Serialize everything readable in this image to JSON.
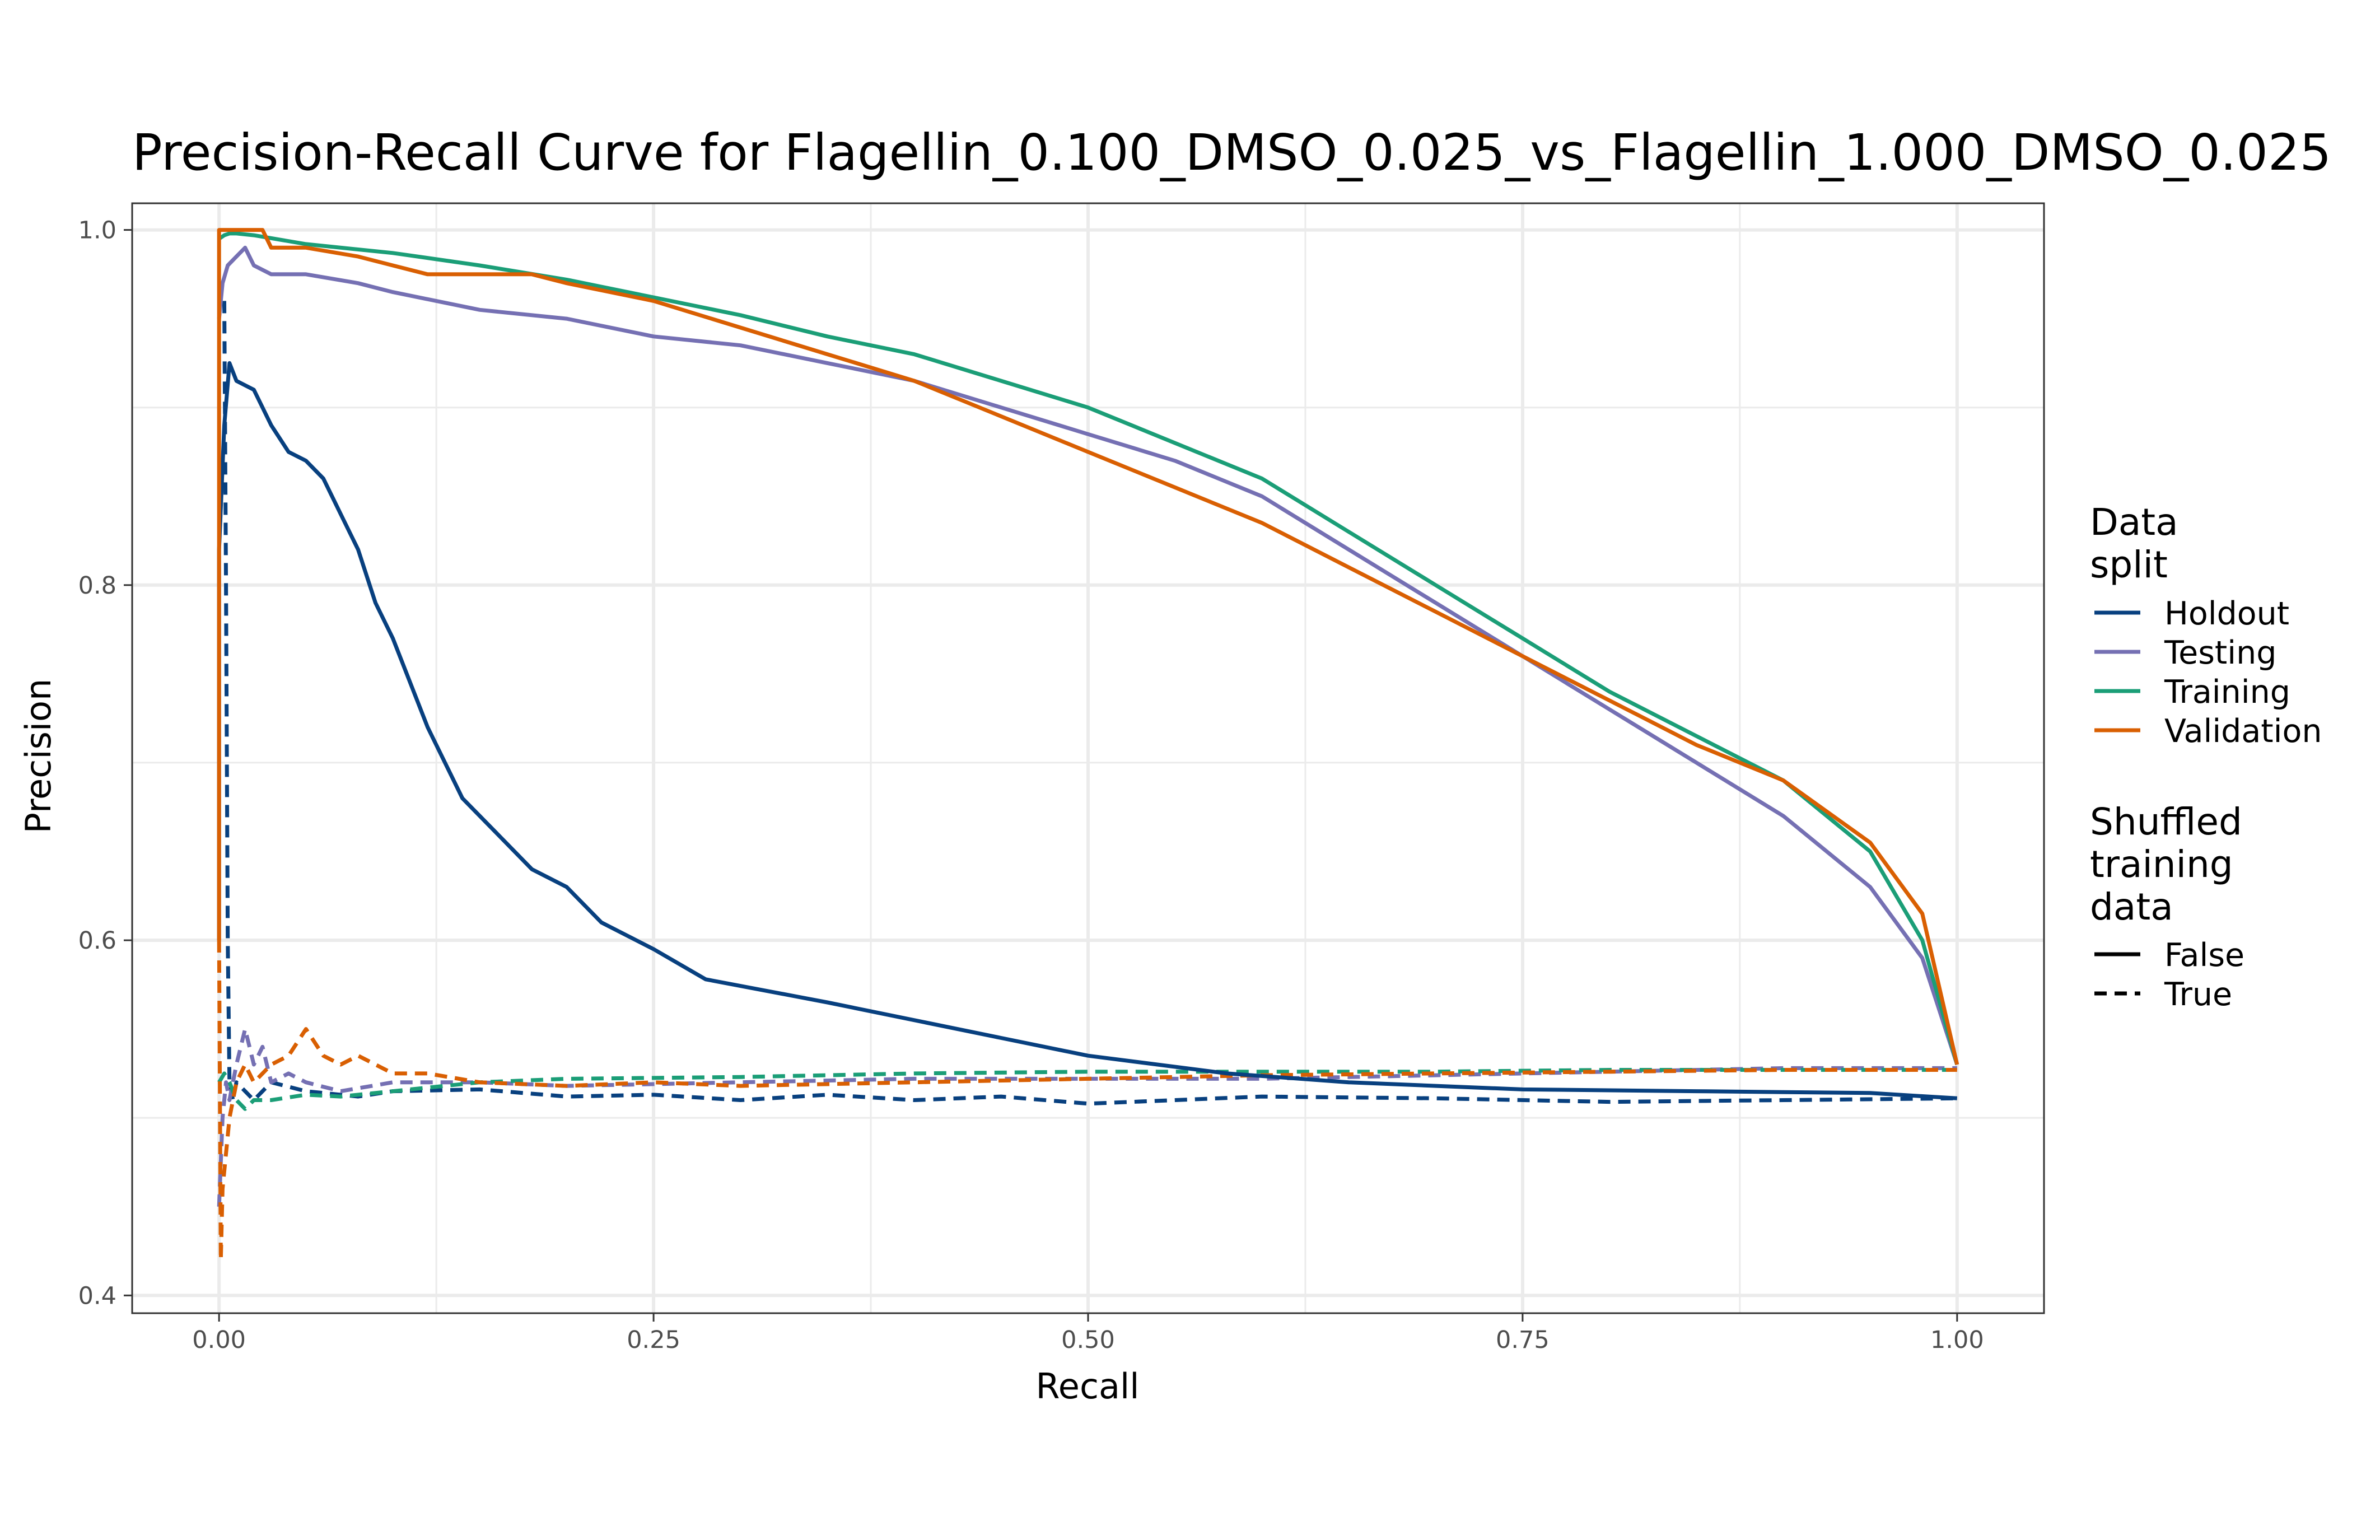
{
  "chart_data": {
    "type": "line",
    "title": "Precision-Recall Curve for Flagellin_0.100_DMSO_0.025_vs_Flagellin_1.000_DMSO_0.025",
    "xlabel": "Recall",
    "ylabel": "Precision",
    "xlim": [
      -0.05,
      1.05
    ],
    "ylim": [
      0.39,
      1.015
    ],
    "x_ticks": [
      "0.00",
      "0.25",
      "0.50",
      "0.75",
      "1.00"
    ],
    "y_ticks": [
      "0.4",
      "0.6",
      "0.8",
      "1.0"
    ],
    "grid": true,
    "legend_placement": "right",
    "legend": {
      "color_title": "Data\nsplit",
      "color_entries": [
        {
          "label": "Holdout",
          "color": "#08407F"
        },
        {
          "label": "Testing",
          "color": "#7570B3"
        },
        {
          "label": "Training",
          "color": "#1B9E77"
        },
        {
          "label": "Validation",
          "color": "#D95F02"
        }
      ],
      "linetype_title": "Shuffled\ntraining\ndata",
      "linetype_entries": [
        {
          "label": "False",
          "dash": "solid"
        },
        {
          "label": "True",
          "dash": "dashed"
        }
      ]
    },
    "series": [
      {
        "split": "Holdout",
        "shuffled": "False",
        "color": "#08407F",
        "dash": "solid",
        "x": [
          0.0,
          0.0,
          0.003,
          0.006,
          0.01,
          0.02,
          0.03,
          0.04,
          0.05,
          0.06,
          0.07,
          0.08,
          0.09,
          0.1,
          0.12,
          0.14,
          0.16,
          0.18,
          0.2,
          0.22,
          0.25,
          0.28,
          0.35,
          0.45,
          0.5,
          0.58,
          0.65,
          0.75,
          0.85,
          0.95,
          1.0
        ],
        "y": [
          0.6,
          0.82,
          0.89,
          0.925,
          0.915,
          0.91,
          0.89,
          0.875,
          0.87,
          0.86,
          0.84,
          0.82,
          0.79,
          0.77,
          0.72,
          0.68,
          0.66,
          0.64,
          0.63,
          0.61,
          0.595,
          0.578,
          0.565,
          0.545,
          0.535,
          0.525,
          0.52,
          0.516,
          0.515,
          0.514,
          0.511
        ]
      },
      {
        "split": "Testing",
        "shuffled": "False",
        "color": "#7570B3",
        "dash": "solid",
        "x": [
          0.0,
          0.002,
          0.005,
          0.01,
          0.015,
          0.02,
          0.03,
          0.05,
          0.08,
          0.1,
          0.15,
          0.2,
          0.25,
          0.3,
          0.35,
          0.4,
          0.45,
          0.5,
          0.55,
          0.6,
          0.65,
          0.7,
          0.75,
          0.8,
          0.85,
          0.9,
          0.95,
          0.98,
          1.0
        ],
        "y": [
          0.95,
          0.97,
          0.98,
          0.985,
          0.99,
          0.98,
          0.975,
          0.975,
          0.97,
          0.965,
          0.955,
          0.95,
          0.94,
          0.935,
          0.925,
          0.915,
          0.9,
          0.885,
          0.87,
          0.85,
          0.82,
          0.79,
          0.76,
          0.73,
          0.7,
          0.67,
          0.63,
          0.59,
          0.53
        ]
      },
      {
        "split": "Training",
        "shuffled": "False",
        "color": "#1B9E77",
        "dash": "solid",
        "x": [
          0.0,
          0.003,
          0.006,
          0.01,
          0.02,
          0.05,
          0.1,
          0.15,
          0.2,
          0.25,
          0.3,
          0.35,
          0.4,
          0.45,
          0.5,
          0.55,
          0.6,
          0.65,
          0.7,
          0.75,
          0.8,
          0.85,
          0.9,
          0.95,
          0.98,
          1.0
        ],
        "y": [
          0.995,
          0.997,
          0.998,
          0.998,
          0.997,
          0.992,
          0.987,
          0.98,
          0.972,
          0.962,
          0.952,
          0.94,
          0.93,
          0.915,
          0.9,
          0.88,
          0.86,
          0.83,
          0.8,
          0.77,
          0.74,
          0.715,
          0.69,
          0.65,
          0.6,
          0.53
        ]
      },
      {
        "split": "Validation",
        "shuffled": "False",
        "color": "#D95F02",
        "dash": "solid",
        "x": [
          0.0,
          0.0,
          0.025,
          0.03,
          0.05,
          0.08,
          0.1,
          0.12,
          0.15,
          0.18,
          0.2,
          0.25,
          0.3,
          0.35,
          0.4,
          0.45,
          0.5,
          0.55,
          0.6,
          0.65,
          0.7,
          0.75,
          0.8,
          0.85,
          0.9,
          0.95,
          0.98,
          1.0
        ],
        "y": [
          0.6,
          1.0,
          1.0,
          0.99,
          0.99,
          0.985,
          0.98,
          0.975,
          0.975,
          0.975,
          0.97,
          0.96,
          0.945,
          0.93,
          0.915,
          0.895,
          0.875,
          0.855,
          0.835,
          0.81,
          0.785,
          0.76,
          0.735,
          0.71,
          0.69,
          0.655,
          0.615,
          0.53
        ]
      },
      {
        "split": "Holdout",
        "shuffled": "True",
        "color": "#08407F",
        "dash": "dashed",
        "x": [
          0.003,
          0.004,
          0.005,
          0.006,
          0.008,
          0.01,
          0.015,
          0.02,
          0.03,
          0.05,
          0.08,
          0.1,
          0.15,
          0.2,
          0.25,
          0.3,
          0.35,
          0.4,
          0.45,
          0.5,
          0.55,
          0.6,
          0.7,
          0.8,
          0.9,
          1.0
        ],
        "y": [
          0.96,
          0.8,
          0.6,
          0.52,
          0.51,
          0.52,
          0.515,
          0.51,
          0.52,
          0.515,
          0.512,
          0.515,
          0.516,
          0.512,
          0.513,
          0.51,
          0.513,
          0.51,
          0.512,
          0.508,
          0.51,
          0.512,
          0.511,
          0.509,
          0.51,
          0.511
        ]
      },
      {
        "split": "Testing",
        "shuffled": "True",
        "color": "#7570B3",
        "dash": "dashed",
        "x": [
          0.0,
          0.002,
          0.004,
          0.006,
          0.01,
          0.015,
          0.02,
          0.025,
          0.03,
          0.04,
          0.05,
          0.07,
          0.1,
          0.15,
          0.2,
          0.3,
          0.4,
          0.5,
          0.6,
          0.7,
          0.8,
          0.9,
          1.0
        ],
        "y": [
          0.45,
          0.5,
          0.52,
          0.51,
          0.53,
          0.55,
          0.53,
          0.54,
          0.52,
          0.525,
          0.52,
          0.515,
          0.52,
          0.52,
          0.518,
          0.52,
          0.522,
          0.522,
          0.522,
          0.524,
          0.526,
          0.528,
          0.528
        ]
      },
      {
        "split": "Training",
        "shuffled": "True",
        "color": "#1B9E77",
        "dash": "dashed",
        "x": [
          0.0,
          0.003,
          0.006,
          0.01,
          0.015,
          0.02,
          0.03,
          0.05,
          0.07,
          0.1,
          0.15,
          0.2,
          0.3,
          0.4,
          0.5,
          0.6,
          0.7,
          0.8,
          0.9,
          1.0
        ],
        "y": [
          0.52,
          0.525,
          0.52,
          0.51,
          0.505,
          0.51,
          0.51,
          0.513,
          0.512,
          0.515,
          0.52,
          0.522,
          0.523,
          0.525,
          0.526,
          0.526,
          0.526,
          0.527,
          0.527,
          0.527
        ]
      },
      {
        "split": "Validation",
        "shuffled": "True",
        "color": "#D95F02",
        "dash": "dashed",
        "x": [
          0.0,
          0.001,
          0.002,
          0.004,
          0.006,
          0.008,
          0.01,
          0.015,
          0.02,
          0.03,
          0.04,
          0.05,
          0.06,
          0.07,
          0.08,
          0.1,
          0.12,
          0.15,
          0.2,
          0.25,
          0.3,
          0.4,
          0.5,
          0.6,
          0.7,
          0.8,
          0.9,
          1.0
        ],
        "y": [
          0.6,
          0.42,
          0.46,
          0.48,
          0.5,
          0.51,
          0.52,
          0.53,
          0.52,
          0.53,
          0.535,
          0.55,
          0.535,
          0.53,
          0.535,
          0.525,
          0.525,
          0.52,
          0.518,
          0.52,
          0.518,
          0.52,
          0.522,
          0.524,
          0.525,
          0.526,
          0.527,
          0.527
        ]
      }
    ]
  }
}
